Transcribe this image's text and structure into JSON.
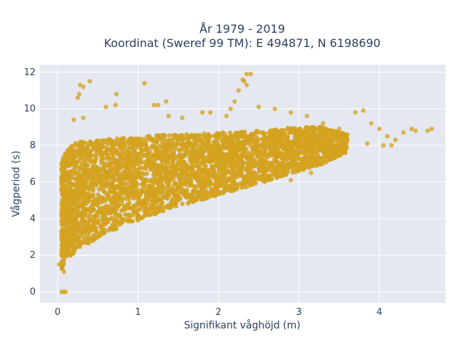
{
  "chart_data": {
    "type": "scatter",
    "title_lines": [
      "År 1979 - 2019",
      "Koordinat (Sweref 99 TM): E 494871, N 6198690"
    ],
    "xlabel": "Signifikant våghöjd (m)",
    "ylabel": "Vågperiod (s)",
    "xlim": [
      -0.22,
      4.82
    ],
    "ylim": [
      -0.6,
      12.4
    ],
    "x_ticks": [
      0,
      1,
      2,
      3,
      4
    ],
    "y_ticks": [
      0,
      2,
      4,
      6,
      8,
      10,
      12
    ],
    "grid": true,
    "plot_bgcolor": "#e5e8f0",
    "series": [
      {
        "color": "#d4a21f",
        "dense_band": {
          "x": [
            0.05,
            0.1,
            0.2,
            0.3,
            0.5,
            0.8,
            1.0,
            1.3,
            1.6,
            2.0,
            2.5,
            3.0,
            3.3,
            3.6
          ],
          "y_low": [
            1.2,
            1.8,
            2.1,
            2.4,
            2.9,
            3.6,
            3.9,
            4.4,
            4.8,
            5.3,
            5.9,
            6.6,
            7.0,
            7.6
          ],
          "y_high": [
            7.2,
            7.6,
            8.1,
            8.2,
            8.3,
            8.4,
            8.5,
            8.6,
            8.6,
            8.7,
            8.8,
            9.0,
            9.0,
            8.6
          ]
        },
        "points": [
          [
            0.05,
            0.0
          ],
          [
            0.08,
            0.0
          ],
          [
            0.1,
            0.0
          ],
          [
            0.28,
            11.3
          ],
          [
            0.32,
            11.2
          ],
          [
            0.4,
            11.5
          ],
          [
            0.25,
            10.6
          ],
          [
            0.27,
            10.8
          ],
          [
            0.2,
            9.4
          ],
          [
            0.32,
            9.5
          ],
          [
            0.6,
            10.1
          ],
          [
            0.72,
            10.2
          ],
          [
            0.73,
            10.8
          ],
          [
            1.08,
            11.4
          ],
          [
            1.2,
            10.2
          ],
          [
            1.25,
            10.2
          ],
          [
            1.35,
            10.4
          ],
          [
            1.38,
            9.6
          ],
          [
            1.55,
            9.5
          ],
          [
            1.8,
            9.8
          ],
          [
            1.9,
            9.8
          ],
          [
            2.2,
            10.4
          ],
          [
            2.15,
            10.0
          ],
          [
            2.25,
            11.0
          ],
          [
            2.3,
            11.6
          ],
          [
            2.32,
            11.5
          ],
          [
            2.35,
            11.9
          ],
          [
            2.4,
            11.9
          ],
          [
            2.35,
            11.3
          ],
          [
            2.1,
            9.6
          ],
          [
            2.5,
            10.1
          ],
          [
            2.7,
            10.0
          ],
          [
            2.9,
            9.8
          ],
          [
            3.1,
            9.6
          ],
          [
            3.3,
            9.2
          ],
          [
            3.5,
            8.9
          ],
          [
            3.7,
            9.8
          ],
          [
            3.8,
            9.9
          ],
          [
            3.9,
            9.2
          ],
          [
            4.0,
            8.9
          ],
          [
            4.1,
            8.5
          ],
          [
            4.2,
            8.3
          ],
          [
            4.3,
            8.7
          ],
          [
            4.4,
            8.9
          ],
          [
            4.45,
            8.8
          ],
          [
            4.6,
            8.8
          ],
          [
            4.65,
            8.9
          ],
          [
            4.15,
            8.0
          ],
          [
            4.05,
            8.0
          ],
          [
            3.85,
            8.1
          ],
          [
            3.6,
            8.3
          ],
          [
            3.0,
            6.9
          ],
          [
            2.9,
            6.1
          ],
          [
            3.15,
            6.5
          ],
          [
            2.6,
            6.6
          ],
          [
            0.02,
            1.5
          ],
          [
            0.06,
            1.3
          ],
          [
            0.08,
            1.1
          ]
        ]
      }
    ]
  }
}
